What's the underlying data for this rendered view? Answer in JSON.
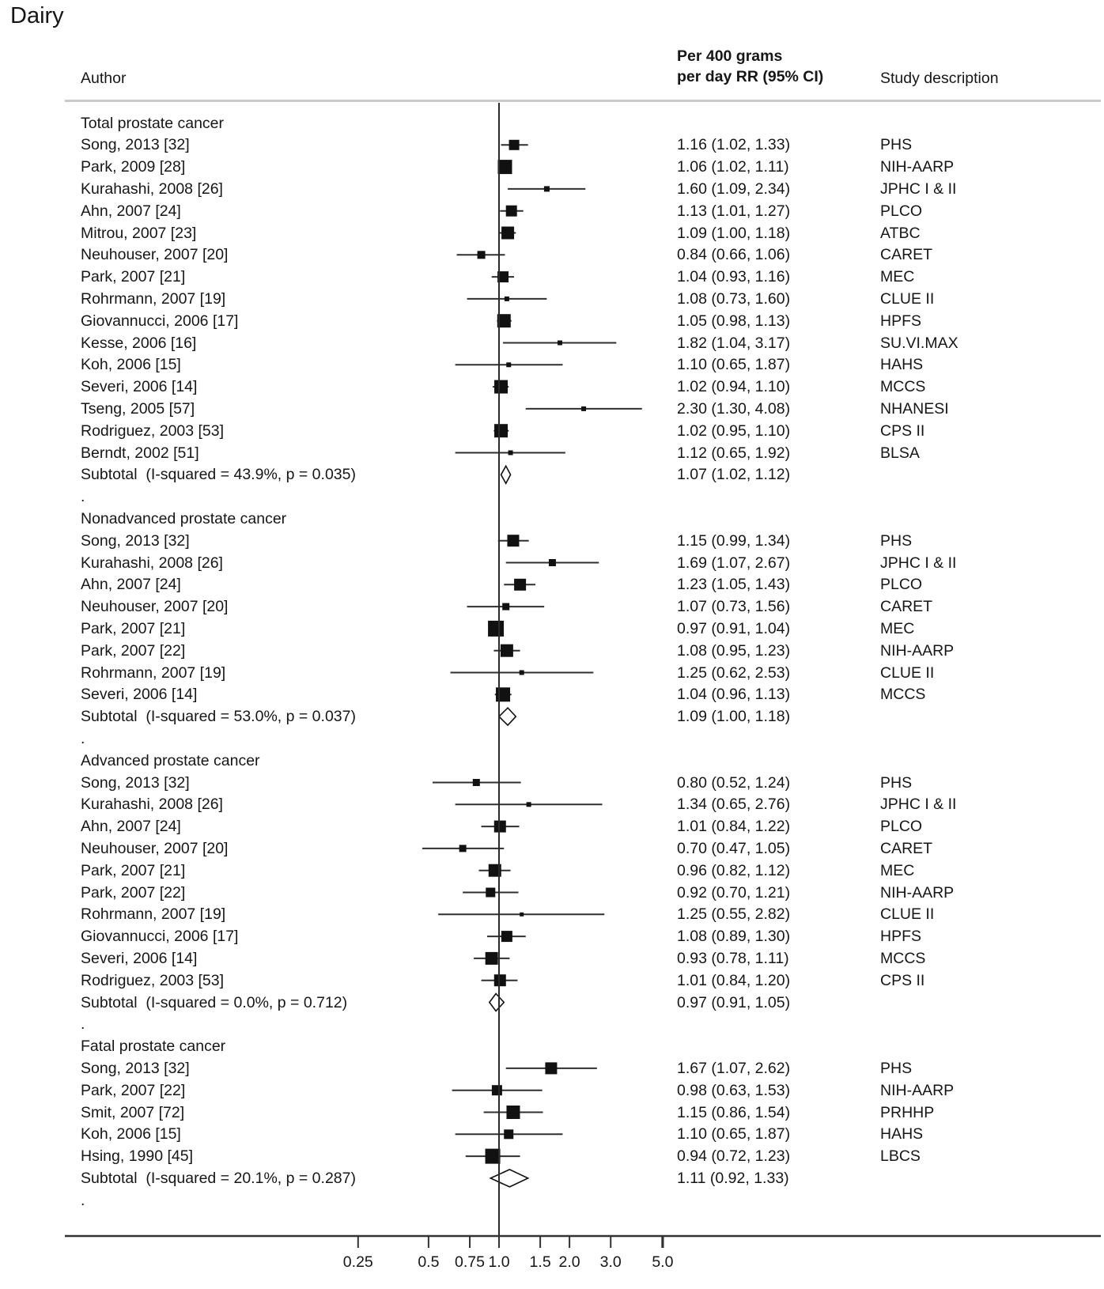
{
  "title": "Dairy",
  "columns": {
    "author": "Author",
    "effect_line1": "Per 400 grams",
    "effect_line2": "per day RR (95% CI)",
    "study": "Study description"
  },
  "separator_dot": ".",
  "chart_data": {
    "type": "forest",
    "title": "Dairy",
    "effect_measure": "RR per 400 grams per day (95% CI)",
    "x_axis": {
      "scale": "log",
      "reference_value": 1.0,
      "xlim": [
        0.25,
        5.0
      ],
      "ticks": [
        {
          "v": 0.25,
          "label": "0.25"
        },
        {
          "v": 0.5,
          "label": "0.5"
        },
        {
          "v": 0.75,
          "label": "0.75"
        },
        {
          "v": 1.0,
          "label": "1.0"
        },
        {
          "v": 1.5,
          "label": "1.5"
        },
        {
          "v": 2.0,
          "label": "2.0"
        },
        {
          "v": 3.0,
          "label": "3.0"
        },
        {
          "v": 5.0,
          "label": "5.0",
          "bold": true
        }
      ]
    },
    "sections": [
      {
        "label": "Total prostate cancer",
        "studies": [
          {
            "author": "Song, 2013 [32]",
            "rr": 1.16,
            "lo": 1.02,
            "hi": 1.33,
            "rr_text": "1.16 (1.02, 1.33)",
            "study": "PHS",
            "w": 13
          },
          {
            "author": "Park, 2009 [28]",
            "rr": 1.06,
            "lo": 1.02,
            "hi": 1.11,
            "rr_text": "1.06 (1.02, 1.11)",
            "study": "NIH-AARP",
            "w": 18
          },
          {
            "author": "Kurahashi, 2008 [26]",
            "rr": 1.6,
            "lo": 1.09,
            "hi": 2.34,
            "rr_text": "1.60 (1.09, 2.34)",
            "study": "JPHC I & II",
            "w": 7
          },
          {
            "author": "Ahn, 2007 [24]",
            "rr": 1.13,
            "lo": 1.01,
            "hi": 1.27,
            "rr_text": "1.13 (1.01, 1.27)",
            "study": "PLCO",
            "w": 14
          },
          {
            "author": "Mitrou, 2007 [23]",
            "rr": 1.09,
            "lo": 1.0,
            "hi": 1.18,
            "rr_text": "1.09 (1.00, 1.18)",
            "study": "ATBC",
            "w": 16
          },
          {
            "author": "Neuhouser, 2007 [20]",
            "rr": 0.84,
            "lo": 0.66,
            "hi": 1.06,
            "rr_text": "0.84 (0.66, 1.06)",
            "study": "CARET",
            "w": 10
          },
          {
            "author": "Park, 2007 [21]",
            "rr": 1.04,
            "lo": 0.93,
            "hi": 1.16,
            "rr_text": "1.04 (0.93, 1.16)",
            "study": "MEC",
            "w": 14
          },
          {
            "author": "Rohrmann, 2007 [19]",
            "rr": 1.08,
            "lo": 0.73,
            "hi": 1.6,
            "rr_text": "1.08 (0.73, 1.60)",
            "study": "CLUE II",
            "w": 6
          },
          {
            "author": "Giovannucci, 2006 [17]",
            "rr": 1.05,
            "lo": 0.98,
            "hi": 1.13,
            "rr_text": "1.05 (0.98, 1.13)",
            "study": "HPFS",
            "w": 17
          },
          {
            "author": "Kesse, 2006 [16]",
            "rr": 1.82,
            "lo": 1.04,
            "hi": 3.17,
            "rr_text": "1.82 (1.04, 3.17)",
            "study": "SU.VI.MAX",
            "w": 6
          },
          {
            "author": "Koh, 2006 [15]",
            "rr": 1.1,
            "lo": 0.65,
            "hi": 1.87,
            "rr_text": "1.10 (0.65, 1.87)",
            "study": "HAHS",
            "w": 6
          },
          {
            "author": "Severi, 2006 [14]",
            "rr": 1.02,
            "lo": 0.94,
            "hi": 1.1,
            "rr_text": "1.02 (0.94, 1.10)",
            "study": "MCCS",
            "w": 17
          },
          {
            "author": "Tseng, 2005 [57]",
            "rr": 2.3,
            "lo": 1.3,
            "hi": 4.08,
            "rr_text": "2.30 (1.30, 4.08)",
            "study": "NHANESI",
            "w": 6
          },
          {
            "author": "Rodriguez, 2003 [53]",
            "rr": 1.02,
            "lo": 0.95,
            "hi": 1.1,
            "rr_text": "1.02 (0.95, 1.10)",
            "study": "CPS II",
            "w": 17
          },
          {
            "author": "Berndt, 2002 [51]",
            "rr": 1.12,
            "lo": 0.65,
            "hi": 1.92,
            "rr_text": "1.12 (0.65, 1.92)",
            "study": "BLSA",
            "w": 6
          }
        ],
        "subtotal": {
          "label": "Subtotal  (I-squared = 43.9%, p = 0.035)",
          "rr": 1.07,
          "lo": 1.02,
          "hi": 1.12,
          "rr_text": "1.07 (1.02, 1.12)"
        }
      },
      {
        "label": "Nonadvanced prostate cancer",
        "studies": [
          {
            "author": "Song, 2013 [32]",
            "rr": 1.15,
            "lo": 0.99,
            "hi": 1.34,
            "rr_text": "1.15 (0.99, 1.34)",
            "study": "PHS",
            "w": 15
          },
          {
            "author": "Kurahashi, 2008 [26]",
            "rr": 1.69,
            "lo": 1.07,
            "hi": 2.67,
            "rr_text": "1.69 (1.07, 2.67)",
            "study": "JPHC I & II",
            "w": 9
          },
          {
            "author": "Ahn, 2007 [24]",
            "rr": 1.23,
            "lo": 1.05,
            "hi": 1.43,
            "rr_text": "1.23 (1.05, 1.43)",
            "study": "PLCO",
            "w": 15
          },
          {
            "author": "Neuhouser, 2007 [20]",
            "rr": 1.07,
            "lo": 0.73,
            "hi": 1.56,
            "rr_text": "1.07 (0.73, 1.56)",
            "study": "CARET",
            "w": 9
          },
          {
            "author": "Park, 2007 [21]",
            "rr": 0.97,
            "lo": 0.91,
            "hi": 1.04,
            "rr_text": "0.97 (0.91, 1.04)",
            "study": "MEC",
            "w": 20
          },
          {
            "author": "Park, 2007 [22]",
            "rr": 1.08,
            "lo": 0.95,
            "hi": 1.23,
            "rr_text": "1.08 (0.95, 1.23)",
            "study": "NIH-AARP",
            "w": 16
          },
          {
            "author": "Rohrmann, 2007 [19]",
            "rr": 1.25,
            "lo": 0.62,
            "hi": 2.53,
            "rr_text": "1.25 (0.62, 2.53)",
            "study": "CLUE II",
            "w": 6
          },
          {
            "author": "Severi, 2006 [14]",
            "rr": 1.04,
            "lo": 0.96,
            "hi": 1.13,
            "rr_text": "1.04 (0.96, 1.13)",
            "study": "MCCS",
            "w": 18
          }
        ],
        "subtotal": {
          "label": "Subtotal  (I-squared = 53.0%, p = 0.037)",
          "rr": 1.09,
          "lo": 1.0,
          "hi": 1.18,
          "rr_text": "1.09 (1.00, 1.18)"
        }
      },
      {
        "label": "Advanced prostate cancer",
        "studies": [
          {
            "author": "Song, 2013 [32]",
            "rr": 0.8,
            "lo": 0.52,
            "hi": 1.24,
            "rr_text": "0.80 (0.52, 1.24)",
            "study": "PHS",
            "w": 9
          },
          {
            "author": "Kurahashi, 2008 [26]",
            "rr": 1.34,
            "lo": 0.65,
            "hi": 2.76,
            "rr_text": "1.34 (0.65, 2.76)",
            "study": "JPHC I & II",
            "w": 6
          },
          {
            "author": "Ahn, 2007 [24]",
            "rr": 1.01,
            "lo": 0.84,
            "hi": 1.22,
            "rr_text": "1.01 (0.84, 1.22)",
            "study": "PLCO",
            "w": 15
          },
          {
            "author": "Neuhouser, 2007 [20]",
            "rr": 0.7,
            "lo": 0.47,
            "hi": 1.05,
            "rr_text": "0.70 (0.47, 1.05)",
            "study": "CARET",
            "w": 9
          },
          {
            "author": "Park, 2007 [21]",
            "rr": 0.96,
            "lo": 0.82,
            "hi": 1.12,
            "rr_text": "0.96 (0.82, 1.12)",
            "study": "MEC",
            "w": 16
          },
          {
            "author": "Park, 2007 [22]",
            "rr": 0.92,
            "lo": 0.7,
            "hi": 1.21,
            "rr_text": "0.92 (0.70, 1.21)",
            "study": "NIH-AARP",
            "w": 12
          },
          {
            "author": "Rohrmann, 2007 [19]",
            "rr": 1.25,
            "lo": 0.55,
            "hi": 2.82,
            "rr_text": "1.25 (0.55, 2.82)",
            "study": "CLUE II",
            "w": 5
          },
          {
            "author": "Giovannucci, 2006 [17]",
            "rr": 1.08,
            "lo": 0.89,
            "hi": 1.3,
            "rr_text": "1.08 (0.89, 1.30)",
            "study": "HPFS",
            "w": 14
          },
          {
            "author": "Severi, 2006 [14]",
            "rr": 0.93,
            "lo": 0.78,
            "hi": 1.11,
            "rr_text": "0.93 (0.78, 1.11)",
            "study": "MCCS",
            "w": 16
          },
          {
            "author": "Rodriguez, 2003 [53]",
            "rr": 1.01,
            "lo": 0.84,
            "hi": 1.2,
            "rr_text": "1.01 (0.84, 1.20)",
            "study": "CPS II",
            "w": 15
          }
        ],
        "subtotal": {
          "label": "Subtotal  (I-squared = 0.0%, p = 0.712)",
          "rr": 0.97,
          "lo": 0.91,
          "hi": 1.05,
          "rr_text": "0.97 (0.91, 1.05)"
        }
      },
      {
        "label": "Fatal prostate cancer",
        "studies": [
          {
            "author": "Song, 2013 [32]",
            "rr": 1.67,
            "lo": 1.07,
            "hi": 2.62,
            "rr_text": "1.67 (1.07, 2.62)",
            "study": "PHS",
            "w": 15
          },
          {
            "author": "Park, 2007 [22]",
            "rr": 0.98,
            "lo": 0.63,
            "hi": 1.53,
            "rr_text": "0.98 (0.63, 1.53)",
            "study": "NIH-AARP",
            "w": 13
          },
          {
            "author": "Smit, 2007 [72]",
            "rr": 1.15,
            "lo": 0.86,
            "hi": 1.54,
            "rr_text": "1.15 (0.86, 1.54)",
            "study": "PRHHP",
            "w": 17
          },
          {
            "author": "Koh, 2006 [15]",
            "rr": 1.1,
            "lo": 0.65,
            "hi": 1.87,
            "rr_text": "1.10 (0.65, 1.87)",
            "study": "HAHS",
            "w": 12
          },
          {
            "author": "Hsing, 1990 [45]",
            "rr": 0.94,
            "lo": 0.72,
            "hi": 1.23,
            "rr_text": "0.94 (0.72, 1.23)",
            "study": "LBCS",
            "w": 19
          }
        ],
        "subtotal": {
          "label": "Subtotal  (I-squared = 20.1%, p = 0.287)",
          "rr": 1.11,
          "lo": 0.92,
          "hi": 1.33,
          "rr_text": "1.11 (0.92, 1.33)"
        }
      }
    ]
  }
}
